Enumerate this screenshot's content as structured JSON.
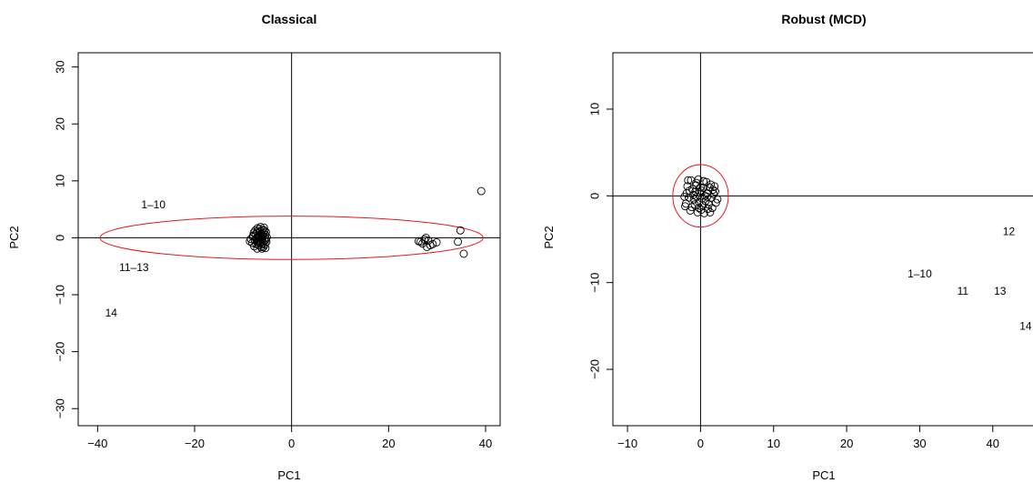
{
  "chart_data": [
    {
      "type": "scatter",
      "title": "Classical",
      "xlabel": "PC1",
      "ylabel": "PC2",
      "xlim": [
        -44,
        43
      ],
      "ylim": [
        -33,
        32.5
      ],
      "xticks": [
        -40,
        -20,
        0,
        20,
        40
      ],
      "yticks": [
        -30,
        -20,
        -10,
        0,
        10,
        20,
        30
      ],
      "xtick_labels": [
        "−40",
        "−20",
        "0",
        "20",
        "40"
      ],
      "ytick_labels": [
        "−30",
        "−20",
        "−10",
        "0",
        "10",
        "20",
        "30"
      ],
      "reference_lines": {
        "x": 0,
        "y": 0
      },
      "ellipse": {
        "center": [
          0,
          0
        ],
        "x_radius": 39.5,
        "y_radius": 3.8,
        "color": "#e31a1c"
      },
      "points": [
        [
          -6.4,
          -0.9
        ],
        [
          -6.9,
          0.2
        ],
        [
          -7.1,
          1.1
        ],
        [
          -5.8,
          -1.6
        ],
        [
          -6.3,
          0.7
        ],
        [
          -7.6,
          -0.4
        ],
        [
          -5.4,
          0.5
        ],
        [
          -6.8,
          -1.3
        ],
        [
          -7.9,
          0.4
        ],
        [
          -6.0,
          1.4
        ],
        [
          -5.6,
          -0.5
        ],
        [
          -7.3,
          -1.1
        ],
        [
          -6.6,
          0.9
        ],
        [
          -5.3,
          1.0
        ],
        [
          -6.1,
          -1.9
        ],
        [
          -7.0,
          1.7
        ],
        [
          -8.4,
          -0.2
        ],
        [
          -6.5,
          0.0
        ],
        [
          -5.9,
          0.3
        ],
        [
          -7.4,
          0.6
        ],
        [
          -6.2,
          -0.3
        ],
        [
          -5.2,
          -0.7
        ],
        [
          -7.7,
          -1.5
        ],
        [
          -6.7,
          1.5
        ],
        [
          -5.7,
          1.8
        ],
        [
          -8.1,
          -0.9
        ],
        [
          -6.9,
          -0.6
        ],
        [
          -5.5,
          -1.2
        ],
        [
          -7.2,
          0.0
        ],
        [
          -6.4,
          1.9
        ],
        [
          -5.9,
          -1.0
        ],
        [
          -7.5,
          1.3
        ],
        [
          -6.0,
          -0.1
        ],
        [
          -8.6,
          -0.6
        ],
        [
          -5.1,
          0.1
        ],
        [
          -6.8,
          0.4
        ],
        [
          -7.3,
          -0.2
        ],
        [
          -6.3,
          -1.6
        ],
        [
          -5.8,
          0.8
        ],
        [
          -7.8,
          0.9
        ],
        [
          -6.6,
          -0.4
        ],
        [
          -5.4,
          -1.8
        ],
        [
          -7.1,
          -1.9
        ],
        [
          -6.1,
          0.6
        ],
        [
          -5.3,
          -0.3
        ],
        [
          -7.0,
          -0.9
        ],
        [
          -6.5,
          1.2
        ],
        [
          -8.0,
          0.2
        ],
        [
          -6.2,
          -0.8
        ],
        [
          -5.6,
          1.3
        ],
        [
          26.6,
          -0.7
        ],
        [
          27.4,
          -0.3
        ],
        [
          28.6,
          -1.3
        ],
        [
          29.9,
          -0.8
        ],
        [
          27.0,
          -1.0
        ],
        [
          29.1,
          -1.1
        ],
        [
          27.7,
          0.0
        ],
        [
          28.2,
          -0.5
        ],
        [
          26.2,
          -0.6
        ],
        [
          27.9,
          -1.6
        ],
        [
          34.3,
          -0.7
        ],
        [
          35.5,
          -2.8
        ],
        [
          34.8,
          1.3
        ],
        [
          39.1,
          8.2
        ]
      ],
      "annotations": [
        {
          "text": "1–10",
          "x": -28.5,
          "y": 5.8
        },
        {
          "text": "11–13",
          "x": -32.5,
          "y": -5.2
        },
        {
          "text": "14",
          "x": -37.2,
          "y": -13.2
        }
      ]
    },
    {
      "type": "scatter",
      "title": "Robust (MCD)",
      "xlabel": "PC1",
      "ylabel": "PC2",
      "xlim": [
        -12,
        46.5
      ],
      "ylim": [
        -26.5,
        16.5
      ],
      "xticks": [
        -10,
        0,
        10,
        20,
        30,
        40
      ],
      "yticks": [
        -20,
        -10,
        0,
        10
      ],
      "xtick_labels": [
        "−10",
        "0",
        "10",
        "20",
        "30",
        "40"
      ],
      "ytick_labels": [
        "−20",
        "−10",
        "0",
        "10"
      ],
      "reference_lines": {
        "x": 0,
        "y": 0
      },
      "ellipse": {
        "center": [
          0,
          0
        ],
        "x_radius": 3.8,
        "y_radius": 3.6,
        "color": "#e31a1c"
      },
      "points": [
        [
          -1.3,
          1.8
        ],
        [
          0.4,
          1.7
        ],
        [
          -0.6,
          1.2
        ],
        [
          1.2,
          1.0
        ],
        [
          -1.9,
          0.3
        ],
        [
          0.1,
          0.6
        ],
        [
          1.8,
          0.2
        ],
        [
          -0.9,
          -0.4
        ],
        [
          0.7,
          -0.6
        ],
        [
          2.1,
          -0.8
        ],
        [
          -2.0,
          -0.9
        ],
        [
          -0.2,
          -1.4
        ],
        [
          1.0,
          -1.5
        ],
        [
          -1.4,
          -1.7
        ],
        [
          0.5,
          -2.0
        ],
        [
          -0.5,
          -0.1
        ],
        [
          0.9,
          0.3
        ],
        [
          -1.1,
          0.8
        ],
        [
          1.5,
          -0.2
        ],
        [
          -0.3,
          1.9
        ],
        [
          0.2,
          -0.3
        ],
        [
          -1.6,
          -0.2
        ],
        [
          1.4,
          1.3
        ],
        [
          -0.8,
          -1.0
        ],
        [
          0.6,
          0.0
        ],
        [
          2.3,
          -0.4
        ],
        [
          -2.2,
          -0.1
        ],
        [
          0.0,
          1.0
        ],
        [
          -0.4,
          -1.9
        ],
        [
          1.1,
          -1.0
        ],
        [
          -1.0,
          0.1
        ],
        [
          0.3,
          -1.1
        ],
        [
          1.7,
          0.7
        ],
        [
          -1.8,
          1.1
        ],
        [
          0.8,
          1.6
        ],
        [
          -0.1,
          0.4
        ],
        [
          1.3,
          -1.9
        ],
        [
          -1.2,
          -1.3
        ],
        [
          0.4,
          0.9
        ],
        [
          -0.7,
          0.5
        ],
        [
          2.0,
          0.5
        ],
        [
          -2.1,
          -1.2
        ],
        [
          0.9,
          -0.1
        ],
        [
          -0.2,
          -0.7
        ],
        [
          1.6,
          -1.4
        ],
        [
          -1.5,
          0.6
        ],
        [
          0.1,
          -1.6
        ],
        [
          -0.6,
          1.5
        ],
        [
          1.9,
          1.1
        ],
        [
          -1.7,
          1.8
        ]
      ],
      "annotations": [
        {
          "text": "1–10",
          "x": 30.0,
          "y": -9.0
        },
        {
          "text": "11",
          "x": 35.9,
          "y": -11.0
        },
        {
          "text": "13",
          "x": 41.0,
          "y": -11.0
        },
        {
          "text": "12",
          "x": 42.2,
          "y": -4.1
        },
        {
          "text": "14",
          "x": 44.5,
          "y": -15.0
        }
      ]
    }
  ]
}
